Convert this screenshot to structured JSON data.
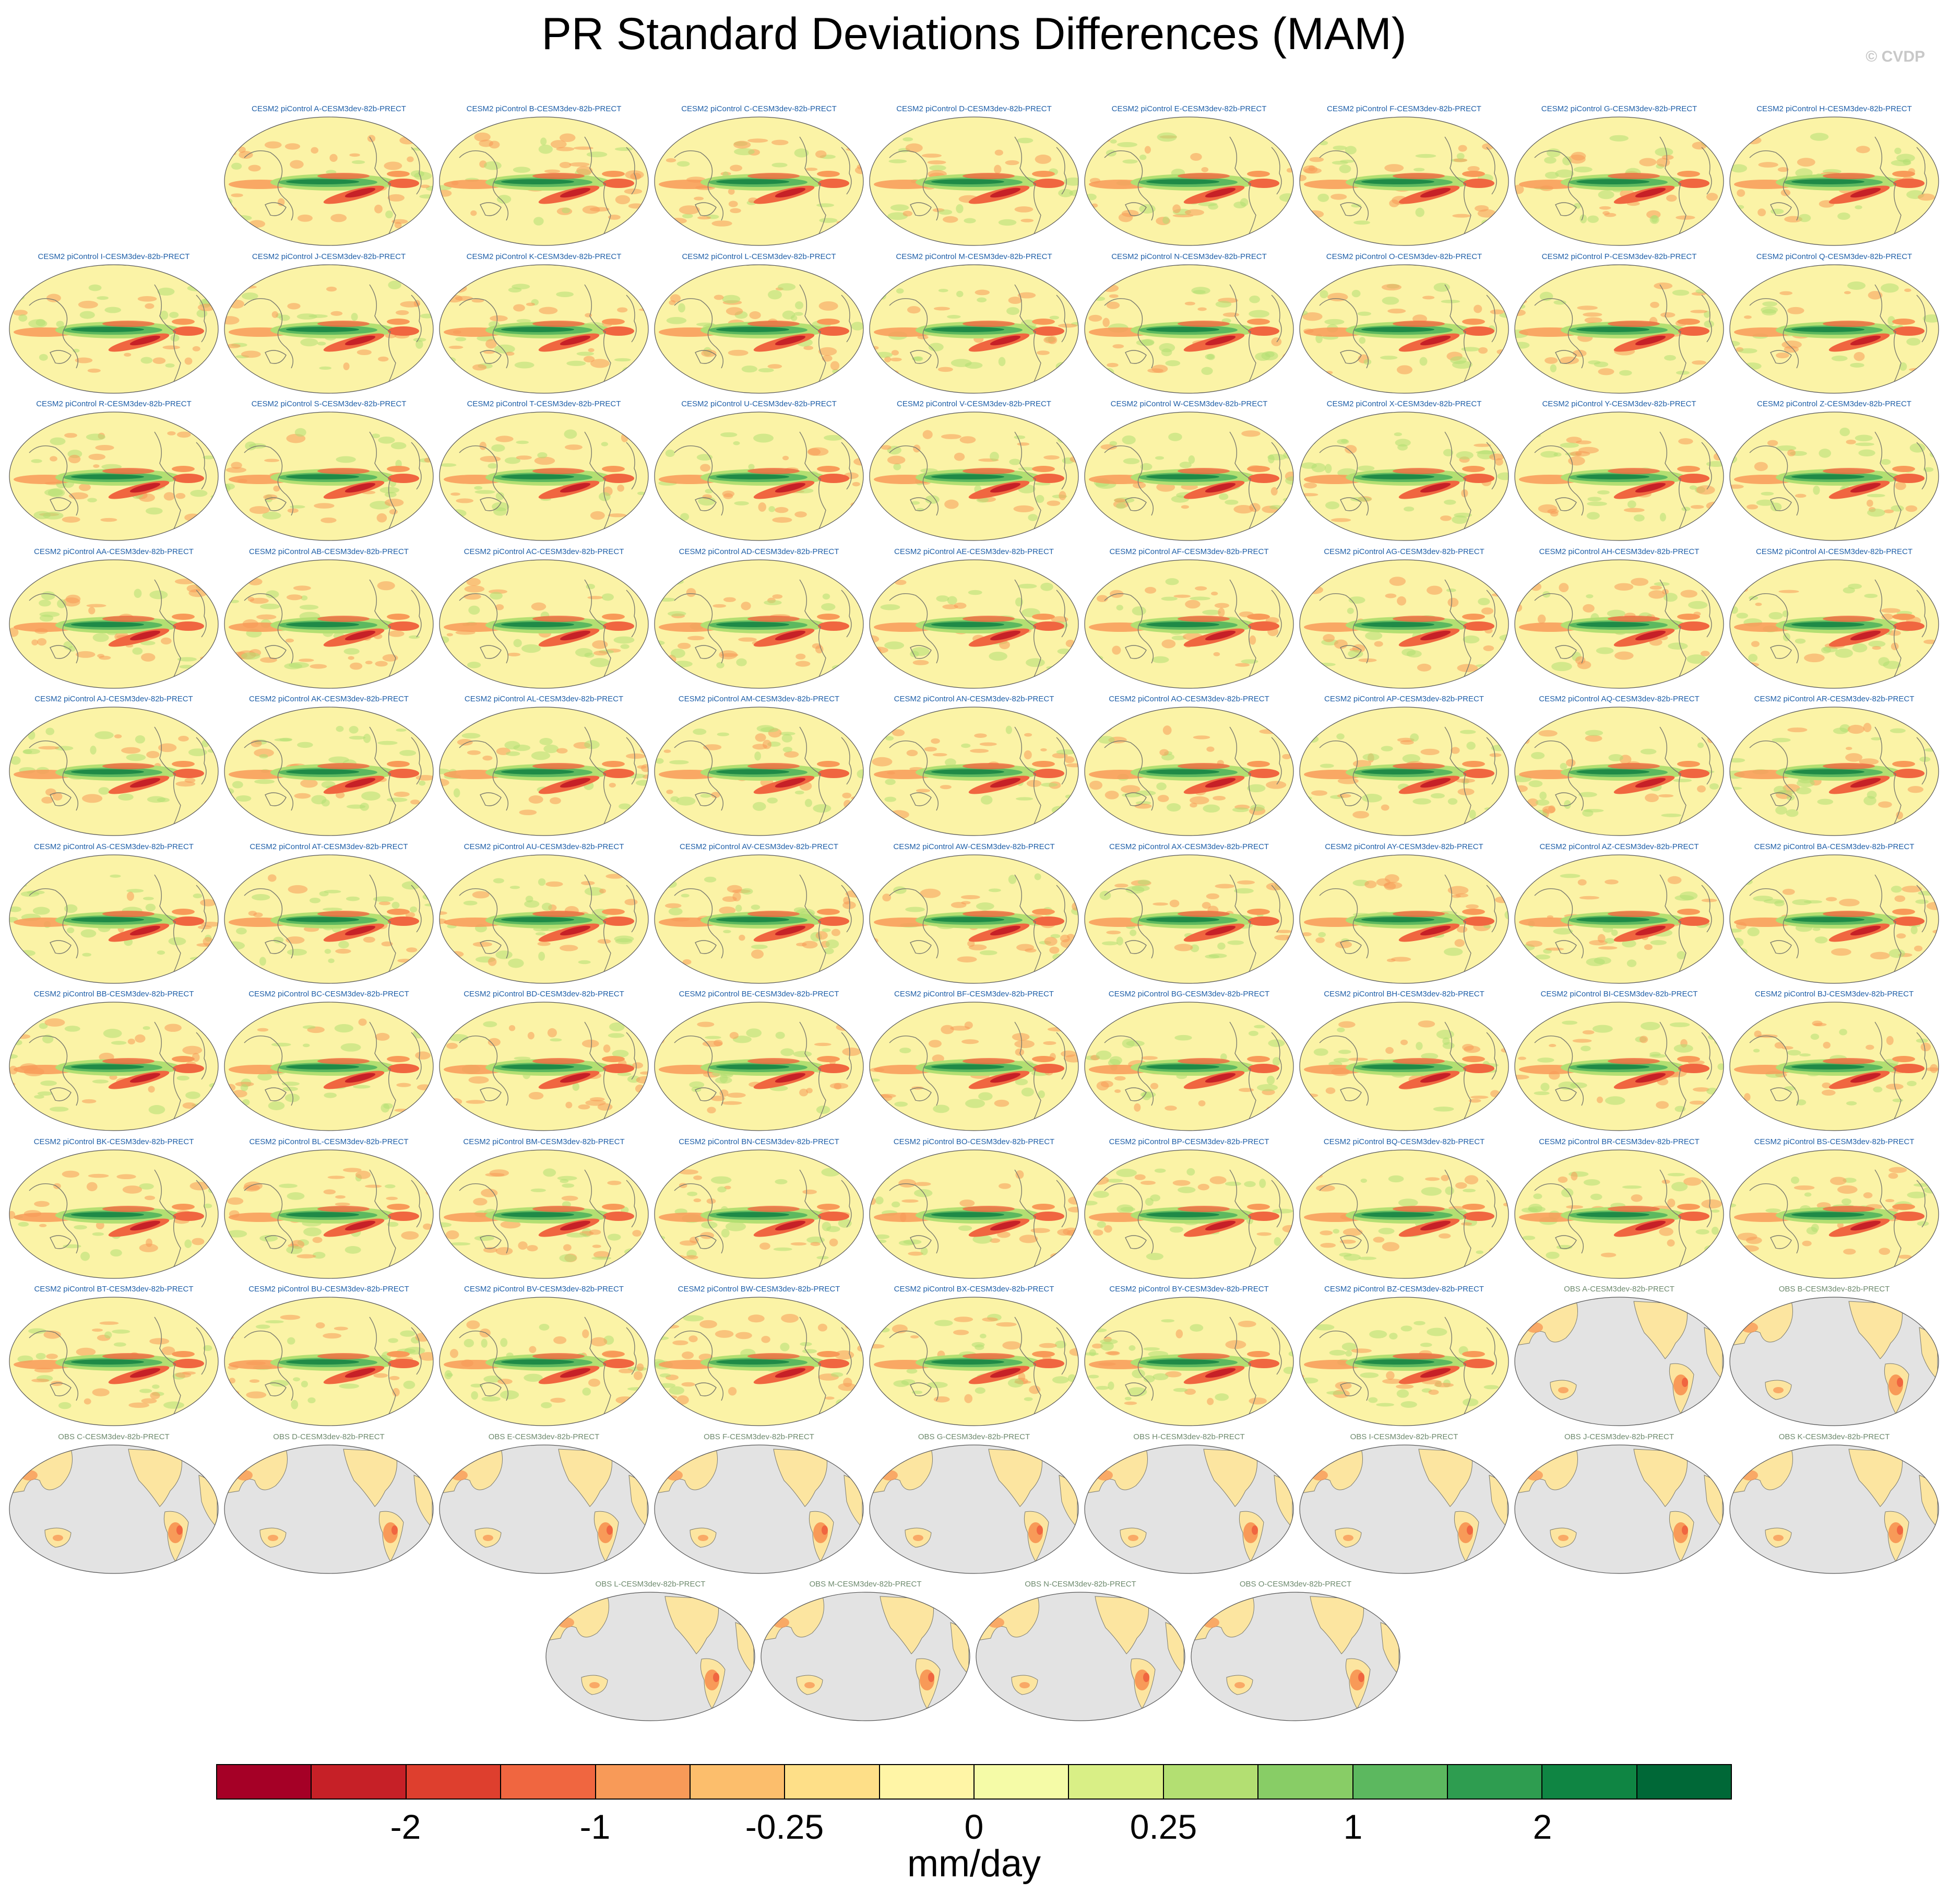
{
  "title": "PR Standard Deviations Differences (MAM)",
  "watermark": "© CVDP",
  "panels": [
    {
      "title": "CESM2 piControl A-CESM3dev-82b-PRECT",
      "type": "model"
    },
    {
      "title": "CESM2 piControl B-CESM3dev-82b-PRECT",
      "type": "model"
    },
    {
      "title": "CESM2 piControl C-CESM3dev-82b-PRECT",
      "type": "model"
    },
    {
      "title": "CESM2 piControl D-CESM3dev-82b-PRECT",
      "type": "model"
    },
    {
      "title": "CESM2 piControl E-CESM3dev-82b-PRECT",
      "type": "model"
    },
    {
      "title": "CESM2 piControl F-CESM3dev-82b-PRECT",
      "type": "model"
    },
    {
      "title": "CESM2 piControl G-CESM3dev-82b-PRECT",
      "type": "model"
    },
    {
      "title": "CESM2 piControl H-CESM3dev-82b-PRECT",
      "type": "model"
    },
    {
      "title": "CESM2 piControl I-CESM3dev-82b-PRECT",
      "type": "model"
    },
    {
      "title": "CESM2 piControl J-CESM3dev-82b-PRECT",
      "type": "model"
    },
    {
      "title": "CESM2 piControl K-CESM3dev-82b-PRECT",
      "type": "model"
    },
    {
      "title": "CESM2 piControl L-CESM3dev-82b-PRECT",
      "type": "model"
    },
    {
      "title": "CESM2 piControl M-CESM3dev-82b-PRECT",
      "type": "model"
    },
    {
      "title": "CESM2 piControl N-CESM3dev-82b-PRECT",
      "type": "model"
    },
    {
      "title": "CESM2 piControl O-CESM3dev-82b-PRECT",
      "type": "model"
    },
    {
      "title": "CESM2 piControl P-CESM3dev-82b-PRECT",
      "type": "model"
    },
    {
      "title": "CESM2 piControl Q-CESM3dev-82b-PRECT",
      "type": "model"
    },
    {
      "title": "CESM2 piControl R-CESM3dev-82b-PRECT",
      "type": "model"
    },
    {
      "title": "CESM2 piControl S-CESM3dev-82b-PRECT",
      "type": "model"
    },
    {
      "title": "CESM2 piControl T-CESM3dev-82b-PRECT",
      "type": "model"
    },
    {
      "title": "CESM2 piControl U-CESM3dev-82b-PRECT",
      "type": "model"
    },
    {
      "title": "CESM2 piControl V-CESM3dev-82b-PRECT",
      "type": "model"
    },
    {
      "title": "CESM2 piControl W-CESM3dev-82b-PRECT",
      "type": "model"
    },
    {
      "title": "CESM2 piControl X-CESM3dev-82b-PRECT",
      "type": "model"
    },
    {
      "title": "CESM2 piControl Y-CESM3dev-82b-PRECT",
      "type": "model"
    },
    {
      "title": "CESM2 piControl Z-CESM3dev-82b-PRECT",
      "type": "model"
    },
    {
      "title": "CESM2 piControl AA-CESM3dev-82b-PRECT",
      "type": "model"
    },
    {
      "title": "CESM2 piControl AB-CESM3dev-82b-PRECT",
      "type": "model"
    },
    {
      "title": "CESM2 piControl AC-CESM3dev-82b-PRECT",
      "type": "model"
    },
    {
      "title": "CESM2 piControl AD-CESM3dev-82b-PRECT",
      "type": "model"
    },
    {
      "title": "CESM2 piControl AE-CESM3dev-82b-PRECT",
      "type": "model"
    },
    {
      "title": "CESM2 piControl AF-CESM3dev-82b-PRECT",
      "type": "model"
    },
    {
      "title": "CESM2 piControl AG-CESM3dev-82b-PRECT",
      "type": "model"
    },
    {
      "title": "CESM2 piControl AH-CESM3dev-82b-PRECT",
      "type": "model"
    },
    {
      "title": "CESM2 piControl AI-CESM3dev-82b-PRECT",
      "type": "model"
    },
    {
      "title": "CESM2 piControl AJ-CESM3dev-82b-PRECT",
      "type": "model"
    },
    {
      "title": "CESM2 piControl AK-CESM3dev-82b-PRECT",
      "type": "model"
    },
    {
      "title": "CESM2 piControl AL-CESM3dev-82b-PRECT",
      "type": "model"
    },
    {
      "title": "CESM2 piControl AM-CESM3dev-82b-PRECT",
      "type": "model"
    },
    {
      "title": "CESM2 piControl AN-CESM3dev-82b-PRECT",
      "type": "model"
    },
    {
      "title": "CESM2 piControl AO-CESM3dev-82b-PRECT",
      "type": "model"
    },
    {
      "title": "CESM2 piControl AP-CESM3dev-82b-PRECT",
      "type": "model"
    },
    {
      "title": "CESM2 piControl AQ-CESM3dev-82b-PRECT",
      "type": "model"
    },
    {
      "title": "CESM2 piControl AR-CESM3dev-82b-PRECT",
      "type": "model"
    },
    {
      "title": "CESM2 piControl AS-CESM3dev-82b-PRECT",
      "type": "model"
    },
    {
      "title": "CESM2 piControl AT-CESM3dev-82b-PRECT",
      "type": "model"
    },
    {
      "title": "CESM2 piControl AU-CESM3dev-82b-PRECT",
      "type": "model"
    },
    {
      "title": "CESM2 piControl AV-CESM3dev-82b-PRECT",
      "type": "model"
    },
    {
      "title": "CESM2 piControl AW-CESM3dev-82b-PRECT",
      "type": "model"
    },
    {
      "title": "CESM2 piControl AX-CESM3dev-82b-PRECT",
      "type": "model"
    },
    {
      "title": "CESM2 piControl AY-CESM3dev-82b-PRECT",
      "type": "model"
    },
    {
      "title": "CESM2 piControl AZ-CESM3dev-82b-PRECT",
      "type": "model"
    },
    {
      "title": "CESM2 piControl BA-CESM3dev-82b-PRECT",
      "type": "model"
    },
    {
      "title": "CESM2 piControl BB-CESM3dev-82b-PRECT",
      "type": "model"
    },
    {
      "title": "CESM2 piControl BC-CESM3dev-82b-PRECT",
      "type": "model"
    },
    {
      "title": "CESM2 piControl BD-CESM3dev-82b-PRECT",
      "type": "model"
    },
    {
      "title": "CESM2 piControl BE-CESM3dev-82b-PRECT",
      "type": "model"
    },
    {
      "title": "CESM2 piControl BF-CESM3dev-82b-PRECT",
      "type": "model"
    },
    {
      "title": "CESM2 piControl BG-CESM3dev-82b-PRECT",
      "type": "model"
    },
    {
      "title": "CESM2 piControl BH-CESM3dev-82b-PRECT",
      "type": "model"
    },
    {
      "title": "CESM2 piControl BI-CESM3dev-82b-PRECT",
      "type": "model"
    },
    {
      "title": "CESM2 piControl BJ-CESM3dev-82b-PRECT",
      "type": "model"
    },
    {
      "title": "CESM2 piControl BK-CESM3dev-82b-PRECT",
      "type": "model"
    },
    {
      "title": "CESM2 piControl BL-CESM3dev-82b-PRECT",
      "type": "model"
    },
    {
      "title": "CESM2 piControl BM-CESM3dev-82b-PRECT",
      "type": "model"
    },
    {
      "title": "CESM2 piControl BN-CESM3dev-82b-PRECT",
      "type": "model"
    },
    {
      "title": "CESM2 piControl BO-CESM3dev-82b-PRECT",
      "type": "model"
    },
    {
      "title": "CESM2 piControl BP-CESM3dev-82b-PRECT",
      "type": "model"
    },
    {
      "title": "CESM2 piControl BQ-CESM3dev-82b-PRECT",
      "type": "model"
    },
    {
      "title": "CESM2 piControl BR-CESM3dev-82b-PRECT",
      "type": "model"
    },
    {
      "title": "CESM2 piControl BS-CESM3dev-82b-PRECT",
      "type": "model"
    },
    {
      "title": "CESM2 piControl BT-CESM3dev-82b-PRECT",
      "type": "model"
    },
    {
      "title": "CESM2 piControl BU-CESM3dev-82b-PRECT",
      "type": "model"
    },
    {
      "title": "CESM2 piControl BV-CESM3dev-82b-PRECT",
      "type": "model"
    },
    {
      "title": "CESM2 piControl BW-CESM3dev-82b-PRECT",
      "type": "model"
    },
    {
      "title": "CESM2 piControl BX-CESM3dev-82b-PRECT",
      "type": "model"
    },
    {
      "title": "CESM2 piControl BY-CESM3dev-82b-PRECT",
      "type": "model"
    },
    {
      "title": "CESM2 piControl BZ-CESM3dev-82b-PRECT",
      "type": "model"
    },
    {
      "title": "OBS A-CESM3dev-82b-PRECT",
      "type": "obs"
    },
    {
      "title": "OBS B-CESM3dev-82b-PRECT",
      "type": "obs"
    },
    {
      "title": "OBS C-CESM3dev-82b-PRECT",
      "type": "obs"
    },
    {
      "title": "OBS D-CESM3dev-82b-PRECT",
      "type": "obs"
    },
    {
      "title": "OBS E-CESM3dev-82b-PRECT",
      "type": "obs"
    },
    {
      "title": "OBS F-CESM3dev-82b-PRECT",
      "type": "obs"
    },
    {
      "title": "OBS G-CESM3dev-82b-PRECT",
      "type": "obs"
    },
    {
      "title": "OBS H-CESM3dev-82b-PRECT",
      "type": "obs"
    },
    {
      "title": "OBS I-CESM3dev-82b-PRECT",
      "type": "obs"
    },
    {
      "title": "OBS J-CESM3dev-82b-PRECT",
      "type": "obs"
    },
    {
      "title": "OBS K-CESM3dev-82b-PRECT",
      "type": "obs"
    },
    {
      "title": "OBS L-CESM3dev-82b-PRECT",
      "type": "obs"
    },
    {
      "title": "OBS M-CESM3dev-82b-PRECT",
      "type": "obs"
    },
    {
      "title": "OBS N-CESM3dev-82b-PRECT",
      "type": "obs"
    },
    {
      "title": "OBS O-CESM3dev-82b-PRECT",
      "type": "obs"
    }
  ],
  "colorbar": {
    "units": "mm/day",
    "colors": [
      "#a50026",
      "#c62027",
      "#de3f2e",
      "#f06640",
      "#f89a58",
      "#fcbe6c",
      "#fedf88",
      "#fff5a6",
      "#f5fba7",
      "#d9ef86",
      "#b3df72",
      "#88cd66",
      "#5cb85f",
      "#2e9d50",
      "#0f8543",
      "#006837"
    ],
    "labels": [
      {
        "text": "-2",
        "boundary": 2
      },
      {
        "text": "-1",
        "boundary": 4
      },
      {
        "text": "-0.25",
        "boundary": 6
      },
      {
        "text": "0",
        "boundary": 8
      },
      {
        "text": "0.25",
        "boundary": 10
      },
      {
        "text": "1",
        "boundary": 12
      },
      {
        "text": "2",
        "boundary": 14
      }
    ]
  },
  "map_colors": {
    "background_model": "#fbf3a6",
    "land_obs": "#fce5a0",
    "ocean_obs": "#e3e3e3",
    "coast": "#7a7a6e",
    "green_dark": "#1f8a47",
    "green_mid": "#5cb85f",
    "green_light": "#b3df72",
    "red_dark": "#c62027",
    "red_mid": "#f06640",
    "orange": "#f89a58"
  }
}
